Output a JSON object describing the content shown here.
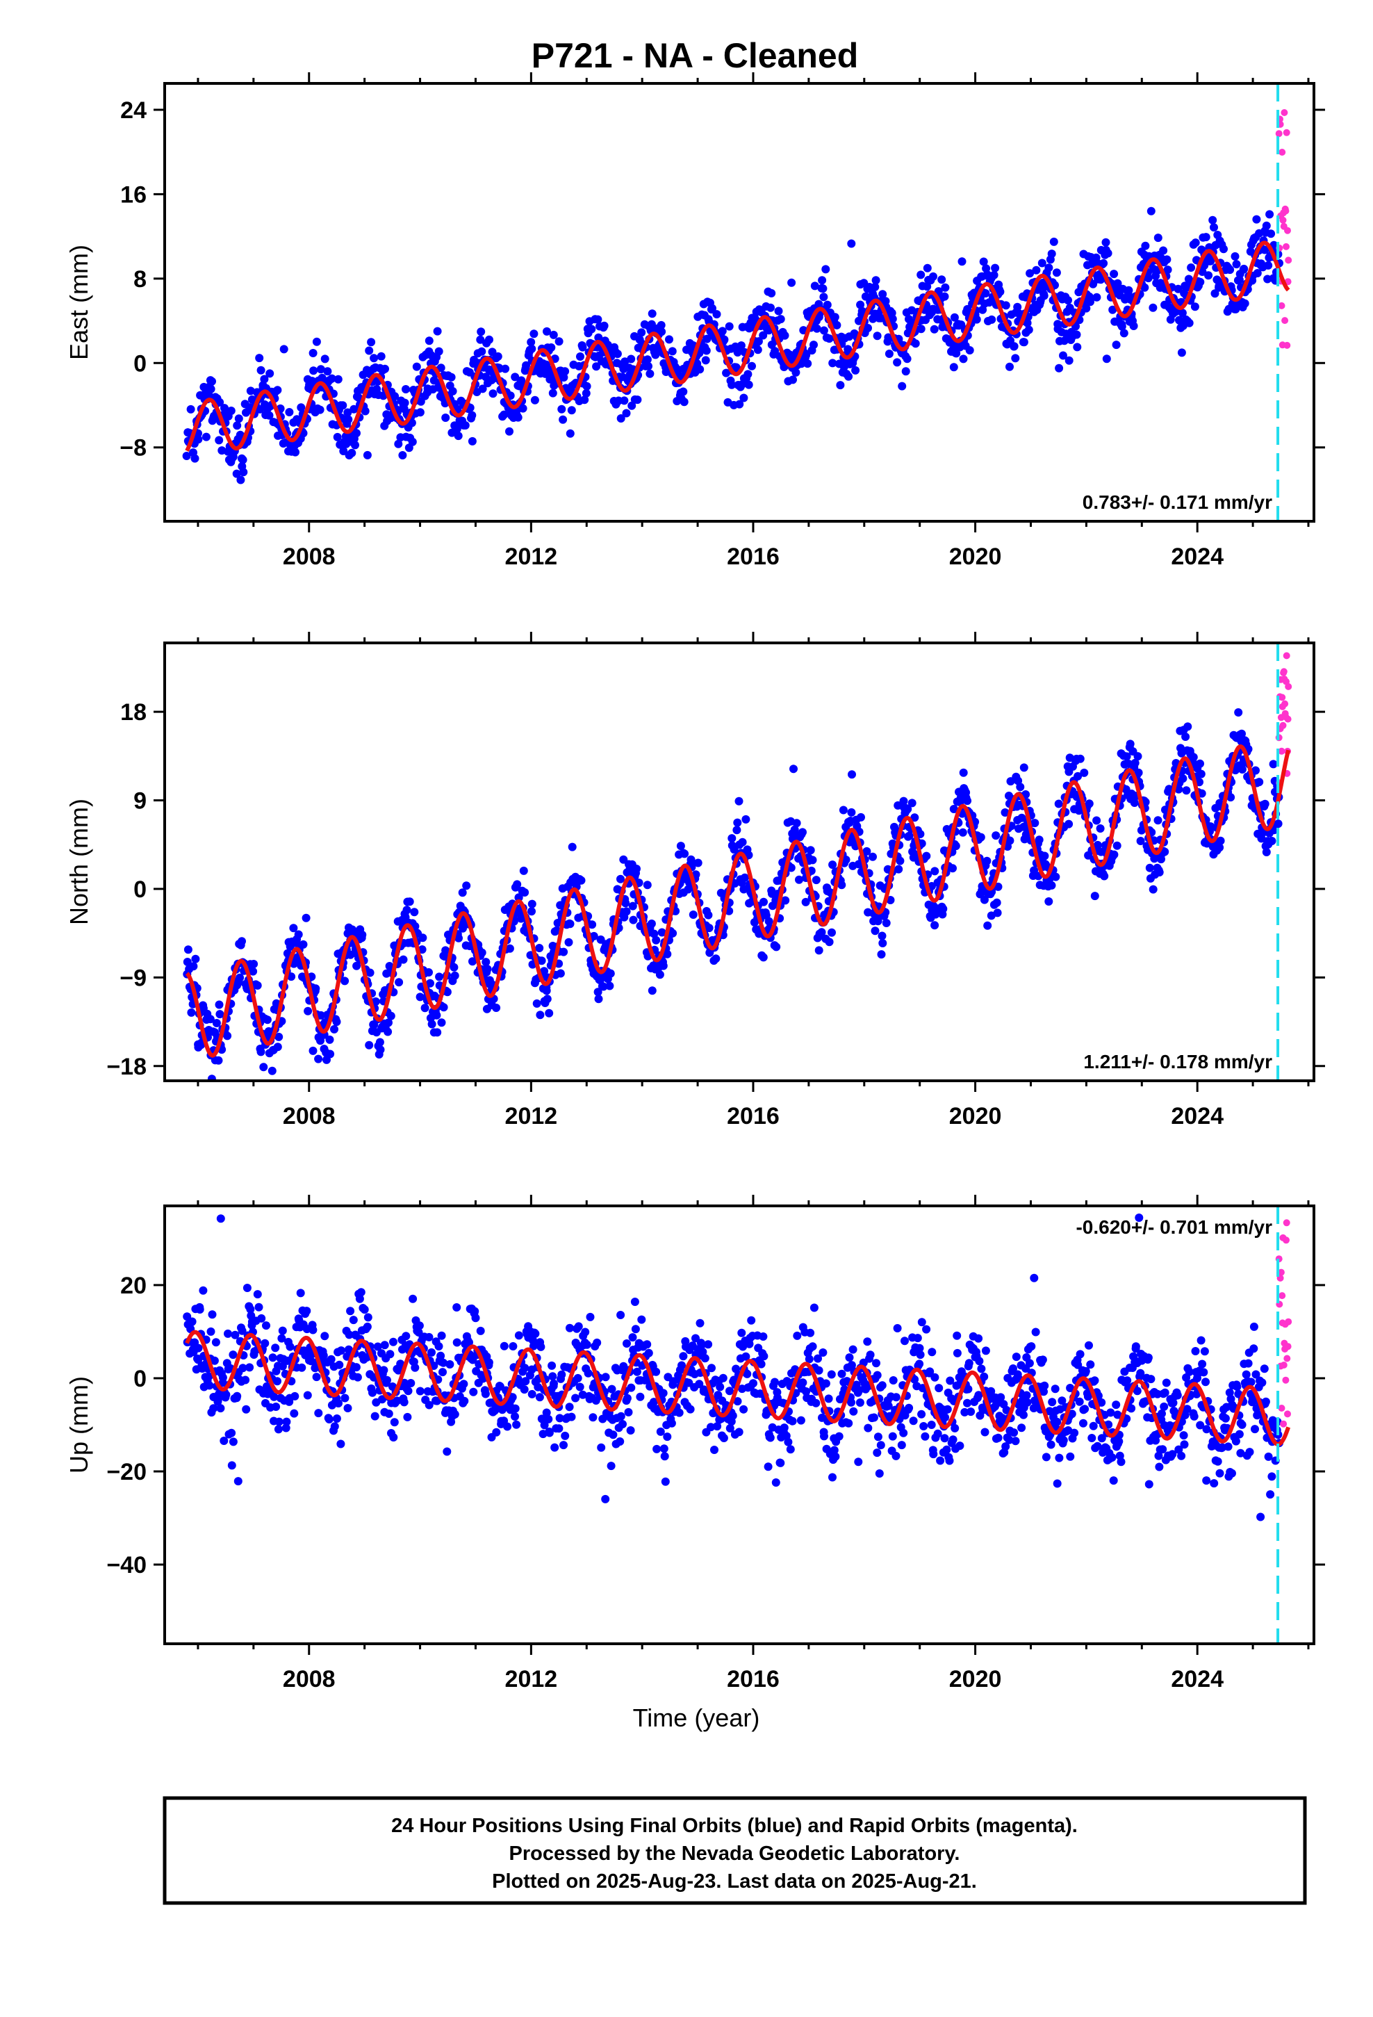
{
  "title": "P721  - NA - Cleaned",
  "xlabel": "Time (year)",
  "colors": {
    "final_orbits": "#0000ff",
    "rapid_orbits": "#ff33cc",
    "model": "#ee1111",
    "marker": "#22ddee",
    "frame": "#000000"
  },
  "footer": {
    "line1": "24 Hour Positions Using Final Orbits (blue) and Rapid Orbits (magenta).",
    "line2": "Processed by the Nevada Geodetic Laboratory.",
    "line3": "Plotted on 2025-Aug-23. Last data on 2025-Aug-21."
  },
  "chart_data": [
    {
      "type": "scatter",
      "component": "east",
      "ylabel": "East (mm)",
      "xlim": [
        2005.4,
        2026.1
      ],
      "ylim": [
        -15,
        26.5
      ],
      "xticks": [
        2008,
        2012,
        2016,
        2020,
        2024
      ],
      "xtick_labels": [
        "2008",
        "2012",
        "2016",
        "2020",
        "2024"
      ],
      "yticks": [
        -8,
        0,
        8,
        16,
        24
      ],
      "ytick_labels": [
        "-8",
        "0",
        "8",
        "16",
        "24"
      ],
      "rate_label": "0.783+/- 0.171 mm/yr",
      "rate_position": "bottom-right",
      "marker_year": 2025.45,
      "data_span": [
        2005.8,
        2025.64
      ],
      "rapid_span": [
        2025.47,
        2025.64
      ],
      "model": {
        "offset": -6.3,
        "trend": 0.783,
        "amplitude": 2.5,
        "phase": 0.95,
        "scatter": 2.0,
        "rapid_min": 0.5,
        "rapid_max": 25.5
      },
      "series": [
        {
          "name": "Final Orbits (blue)",
          "color": "#0000ff"
        },
        {
          "name": "Rapid Orbits (magenta)",
          "color": "#ff33cc"
        }
      ]
    },
    {
      "type": "scatter",
      "component": "north",
      "ylabel": "North (mm)",
      "xlim": [
        2005.4,
        2026.1
      ],
      "ylim": [
        -19.5,
        25
      ],
      "xticks": [
        2008,
        2012,
        2016,
        2020,
        2024
      ],
      "xtick_labels": [
        "2008",
        "2012",
        "2016",
        "2020",
        "2024"
      ],
      "yticks": [
        -18,
        -9,
        0,
        9,
        18
      ],
      "ytick_labels": [
        "-18",
        "-9",
        "0",
        "9",
        "18"
      ],
      "rate_label": "1.211+/- 0.178 mm/yr",
      "rate_position": "bottom-right",
      "marker_year": 2025.45,
      "data_span": [
        2005.8,
        2025.64
      ],
      "rapid_span": [
        2025.47,
        2025.64
      ],
      "model": {
        "offset": -13.0,
        "trend": 1.211,
        "amplitude": 4.5,
        "phase": 0.52,
        "scatter": 2.2,
        "rapid_min": 9.0,
        "rapid_max": 24.0
      },
      "series": [
        {
          "name": "Final Orbits (blue)",
          "color": "#0000ff"
        },
        {
          "name": "Rapid Orbits (magenta)",
          "color": "#ff33cc"
        }
      ]
    },
    {
      "type": "scatter",
      "component": "up",
      "ylabel": "Up (mm)",
      "xlim": [
        2005.4,
        2026.1
      ],
      "ylim": [
        -57,
        37
      ],
      "xticks": [
        2008,
        2012,
        2016,
        2020,
        2024
      ],
      "xtick_labels": [
        "2008",
        "2012",
        "2016",
        "2020",
        "2024"
      ],
      "yticks": [
        -40,
        -20,
        0,
        20
      ],
      "ytick_labels": [
        "-40",
        "-20",
        "0",
        "20"
      ],
      "rate_label": "-0.620+/- 0.701 mm/yr",
      "rate_position": "top-right",
      "marker_year": 2025.45,
      "data_span": [
        2005.8,
        2025.64
      ],
      "rapid_span": [
        2025.47,
        2025.64
      ],
      "model": {
        "offset": 4.0,
        "trend": -0.62,
        "amplitude": 6.0,
        "phase": 0.7,
        "scatter": 7.0,
        "rapid_min": -12.0,
        "rapid_max": 36.0
      },
      "series": [
        {
          "name": "Final Orbits (blue)",
          "color": "#0000ff"
        },
        {
          "name": "Rapid Orbits (magenta)",
          "color": "#ff33cc"
        }
      ]
    }
  ]
}
